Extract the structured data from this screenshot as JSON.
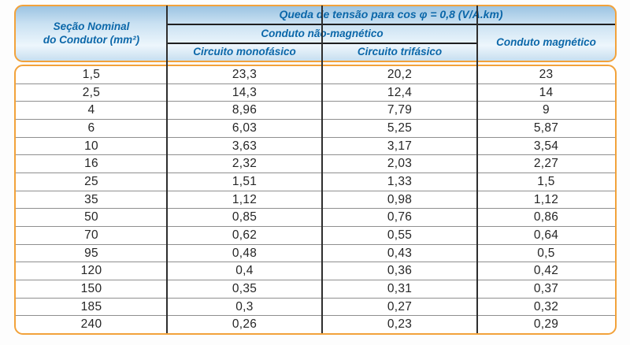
{
  "header": {
    "title": "Queda de tensão para cos φ = 0,8 (V/A.km)",
    "section_line1": "Seção Nominal",
    "section_line2": "do Condutor (mm²)",
    "group_nonmagnetic": "Conduto não-magnético",
    "group_magnetic": "Conduto magnético",
    "col_monophase": "Circuito monofásico",
    "col_triphase": "Circuito trifásico"
  },
  "colors": {
    "border_orange": "#F2A23B",
    "header_text_blue": "#0B67A9",
    "header_gradient_top": "#9cc4e2",
    "header_gradient_bottom": "#c7dff0",
    "body_background": "#ffffff",
    "divider_dark": "#2e2e2e",
    "row_separator_gray": "#8f8f8f",
    "data_text": "#262626"
  },
  "rows": [
    {
      "section": "1,5",
      "mono": "23,3",
      "tri": "20,2",
      "mag": "23"
    },
    {
      "section": "2,5",
      "mono": "14,3",
      "tri": "12,4",
      "mag": "14"
    },
    {
      "section": "4",
      "mono": "8,96",
      "tri": "7,79",
      "mag": "9"
    },
    {
      "section": "6",
      "mono": "6,03",
      "tri": "5,25",
      "mag": "5,87"
    },
    {
      "section": "10",
      "mono": "3,63",
      "tri": "3,17",
      "mag": "3,54"
    },
    {
      "section": "16",
      "mono": "2,32",
      "tri": "2,03",
      "mag": "2,27"
    },
    {
      "section": "25",
      "mono": "1,51",
      "tri": "1,33",
      "mag": "1,5"
    },
    {
      "section": "35",
      "mono": "1,12",
      "tri": "0,98",
      "mag": "1,12"
    },
    {
      "section": "50",
      "mono": "0,85",
      "tri": "0,76",
      "mag": "0,86"
    },
    {
      "section": "70",
      "mono": "0,62",
      "tri": "0,55",
      "mag": "0,64"
    },
    {
      "section": "95",
      "mono": "0,48",
      "tri": "0,43",
      "mag": "0,5"
    },
    {
      "section": "120",
      "mono": "0,4",
      "tri": "0,36",
      "mag": "0,42"
    },
    {
      "section": "150",
      "mono": "0,35",
      "tri": "0,31",
      "mag": "0,37"
    },
    {
      "section": "185",
      "mono": "0,3",
      "tri": "0,27",
      "mag": "0,32"
    },
    {
      "section": "240",
      "mono": "0,26",
      "tri": "0,23",
      "mag": "0,29"
    }
  ]
}
